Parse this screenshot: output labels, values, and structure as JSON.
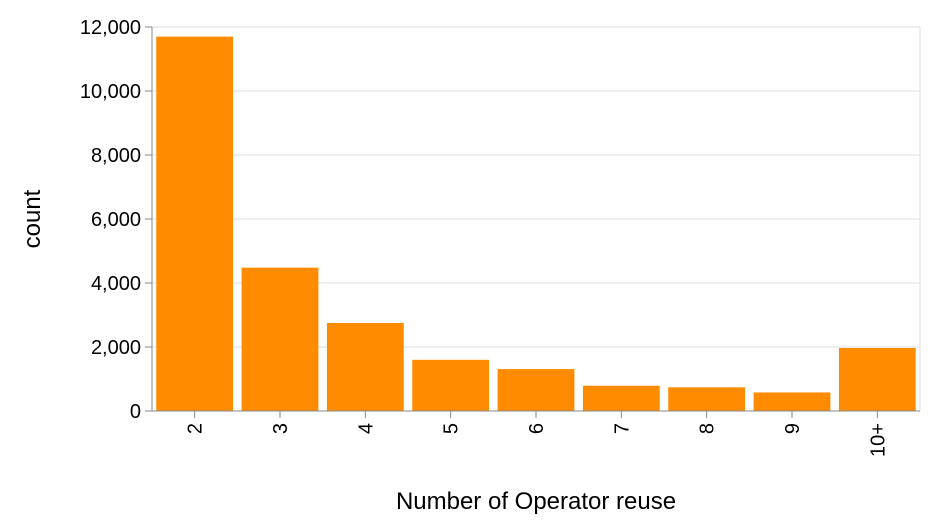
{
  "chart_data": {
    "type": "bar",
    "title": "",
    "xlabel": "Number of Operator reuse",
    "ylabel": "count",
    "categories": [
      "2",
      "3",
      "4",
      "5",
      "6",
      "7",
      "8",
      "9",
      "10+"
    ],
    "values": [
      11700,
      4480,
      2750,
      1600,
      1310,
      790,
      740,
      580,
      1970
    ],
    "ylim": [
      0,
      12000
    ],
    "yticks": [
      0,
      2000,
      4000,
      6000,
      8000,
      10000,
      12000
    ],
    "ytick_labels": [
      "0",
      "2,000",
      "4,000",
      "6,000",
      "8,000",
      "10,000",
      "12,000"
    ],
    "grid": true,
    "legend": "none",
    "colors": {
      "bar": "#ff8c00",
      "grid": "#dddddd",
      "axis": "#888888"
    }
  }
}
